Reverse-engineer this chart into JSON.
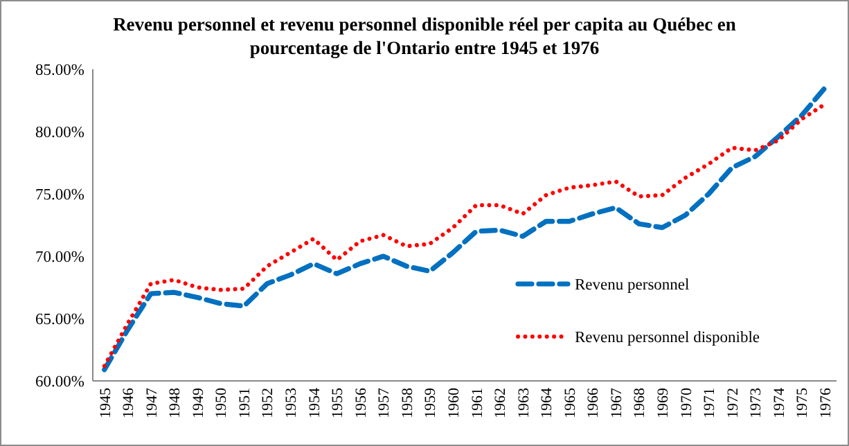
{
  "chart_data": {
    "type": "line",
    "title": "Revenu personnel et revenu personnel disponible réel per capita au Québec en\npourcentage de l'Ontario entre 1945 et 1976",
    "categories": [
      "1945",
      "1946",
      "1947",
      "1948",
      "1949",
      "1950",
      "1951",
      "1952",
      "1953",
      "1954",
      "1955",
      "1956",
      "1957",
      "1958",
      "1959",
      "1960",
      "1961",
      "1962",
      "1963",
      "1964",
      "1965",
      "1966",
      "1967",
      "1968",
      "1969",
      "1970",
      "1971",
      "1972",
      "1973",
      "1974",
      "1975",
      "1976"
    ],
    "series": [
      {
        "name": "Revenu personnel",
        "color": "#0070c0",
        "line_style": "dashed",
        "values": [
          60.9,
          64.1,
          67.0,
          67.1,
          66.7,
          66.2,
          66.0,
          67.8,
          68.5,
          69.4,
          68.6,
          69.4,
          70.0,
          69.2,
          68.8,
          70.3,
          72.0,
          72.1,
          71.6,
          72.8,
          72.8,
          73.4,
          73.9,
          72.6,
          72.3,
          73.3,
          75.0,
          77.1,
          78.0,
          79.6,
          81.3,
          83.5
        ]
      },
      {
        "name": "Revenu personnel disponible",
        "color": "#ff0000",
        "line_style": "dotted",
        "values": [
          61.2,
          64.6,
          67.8,
          68.1,
          67.5,
          67.3,
          67.4,
          69.2,
          70.3,
          71.4,
          69.7,
          71.2,
          71.7,
          70.8,
          71.0,
          72.3,
          74.1,
          74.1,
          73.4,
          74.9,
          75.5,
          75.7,
          76.0,
          74.8,
          74.9,
          76.3,
          77.4,
          78.7,
          78.5,
          79.3,
          81.0,
          82.2
        ]
      }
    ],
    "ylim": [
      60,
      85
    ],
    "yticks": [
      {
        "value": 60,
        "label": "60.00%"
      },
      {
        "value": 65,
        "label": "65.00%"
      },
      {
        "value": 70,
        "label": "70.00%"
      },
      {
        "value": 75,
        "label": "75.00%"
      },
      {
        "value": 80,
        "label": "80.00%"
      },
      {
        "value": 85,
        "label": "85.00%"
      }
    ],
    "legend": "bottom right"
  }
}
